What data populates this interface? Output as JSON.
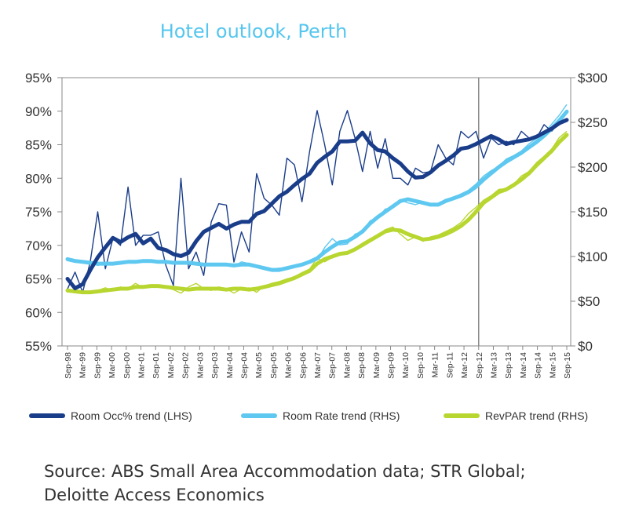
{
  "chart_data": {
    "type": "line",
    "title": "Hotel outlook, Perth",
    "x_labels": [
      "Sep-98",
      "Mar-99",
      "Sep-99",
      "Mar-00",
      "Sep-00",
      "Mar-01",
      "Sep-01",
      "Mar-02",
      "Sep-02",
      "Mar-03",
      "Sep-03",
      "Mar-04",
      "Sep-04",
      "Mar-05",
      "Sep-05",
      "Mar-06",
      "Sep-06",
      "Mar-07",
      "Sep-07",
      "Mar-08",
      "Sep-08",
      "Mar-09",
      "Sep-09",
      "Mar-10",
      "Sep-10",
      "Mar-11",
      "Sep-11",
      "Mar-12",
      "Sep-12",
      "Mar-13",
      "Sep-13",
      "Mar-14",
      "Sep-14",
      "Mar-15",
      "Sep-15"
    ],
    "y_left": {
      "ticks": [
        "55%",
        "60%",
        "65%",
        "70%",
        "75%",
        "80%",
        "85%",
        "90%",
        "95%"
      ],
      "min": 55,
      "max": 95
    },
    "y_right": {
      "ticks": [
        "$0",
        "$50",
        "$100",
        "$150",
        "$200",
        "$250",
        "$300"
      ],
      "min": 0,
      "max": 300
    },
    "forecast_divider_at": "Sep-12",
    "gridlines": false,
    "legend_position": "bottom",
    "series": [
      {
        "name": "Room Occ% trend (LHS)",
        "axis": "left",
        "color": "#1a3d8a",
        "trend": [
          65.0,
          63.6,
          64.2,
          66.3,
          68.2,
          69.7,
          71.1,
          70.5,
          71.2,
          71.7,
          70.3,
          71.0,
          69.6,
          69.3,
          68.7,
          68.4,
          68.9,
          70.6,
          72.0,
          72.6,
          73.2,
          72.5,
          73.1,
          73.5,
          73.5,
          74.7,
          75.1,
          76.2,
          77.3,
          78.0,
          79.0,
          79.9,
          80.7,
          82.3,
          83.2,
          84.0,
          85.5,
          85.5,
          85.6,
          86.8,
          85.2,
          84.2,
          84.0,
          83.0,
          82.2,
          81.0,
          80.1,
          80.2,
          80.9,
          81.9,
          82.6,
          83.4,
          84.4,
          84.6,
          85.1,
          85.7,
          86.3,
          85.8,
          85.1,
          85.4,
          85.6,
          85.8,
          86.2,
          86.8,
          87.4,
          88.2,
          88.7
        ],
        "raw": [
          63.5,
          66.0,
          63.0,
          67.5,
          75.0,
          66.5,
          71.0,
          70.0,
          78.7,
          70.0,
          71.5,
          71.5,
          72.0,
          67.0,
          64.0,
          80.0,
          66.5,
          69.0,
          65.5,
          73.5,
          76.2,
          76.0,
          67.5,
          72.0,
          69.0,
          80.7,
          77.0,
          76.0,
          74.5,
          83.0,
          82.0,
          76.5,
          84.0,
          90.1,
          85.0,
          79.0,
          87.0,
          90.1,
          86.0,
          81.0,
          87.0,
          81.5,
          85.9,
          80.0,
          80.0,
          79.0,
          81.5,
          80.8,
          81.0,
          85.0,
          83.0,
          82.0,
          87.0,
          86.0,
          87.0,
          83.0,
          86.0,
          85.0,
          85.5,
          85.0,
          87.0,
          86.0,
          86.0,
          88.0,
          87.0,
          88.3,
          88.5
        ]
      },
      {
        "name": "Room Rate trend (RHS)",
        "axis": "right",
        "color": "#5ec8f0",
        "trend": [
          97,
          95,
          94,
          93,
          92,
          92,
          92,
          93,
          94,
          94,
          95,
          95,
          94,
          94,
          93,
          93,
          93,
          92,
          91,
          91,
          91,
          91,
          90,
          91,
          91,
          89,
          87,
          85,
          85,
          87,
          89,
          91,
          94,
          98,
          105,
          111,
          116,
          117,
          122,
          128,
          137,
          144,
          150,
          156,
          162,
          164,
          162,
          160,
          158,
          158,
          162,
          165,
          168,
          172,
          178,
          186,
          193,
          200,
          206,
          211,
          216,
          222,
          228,
          235,
          243,
          252,
          262
        ],
        "raw": [
          97,
          96,
          93,
          93,
          90,
          92,
          91,
          94,
          95,
          93,
          96,
          94,
          93,
          95,
          92,
          93,
          91,
          92,
          90,
          91,
          92,
          90,
          89,
          94,
          92,
          88,
          86,
          86,
          87,
          86,
          89,
          92,
          93,
          96,
          110,
          120,
          113,
          114,
          125,
          128,
          140,
          143,
          153,
          155,
          163,
          160,
          158,
          161,
          158,
          159,
          164,
          166,
          170,
          174,
          181,
          190,
          196,
          201,
          209,
          213,
          218,
          226,
          232,
          238,
          248,
          258,
          270
        ]
      },
      {
        "name": "RevPAR trend (RHS)",
        "axis": "right",
        "color": "#b8d630",
        "trend": [
          62,
          61,
          60,
          60,
          61,
          62,
          63,
          64,
          64,
          66,
          66,
          67,
          67,
          66,
          65,
          64,
          63,
          64,
          64,
          64,
          64,
          63,
          64,
          64,
          63,
          64,
          66,
          68,
          70,
          73,
          76,
          80,
          84,
          92,
          97,
          100,
          103,
          104,
          108,
          113,
          118,
          123,
          128,
          130,
          129,
          125,
          122,
          119,
          120,
          122,
          125,
          129,
          134,
          141,
          150,
          160,
          166,
          172,
          175,
          180,
          186,
          193,
          202,
          210,
          218,
          228,
          236
        ],
        "raw": [
          60,
          62,
          59,
          61,
          62,
          65,
          62,
          66,
          64,
          70,
          65,
          66,
          68,
          65,
          63,
          59,
          66,
          70,
          64,
          62,
          66,
          64,
          59,
          64,
          65,
          60,
          67,
          70,
          72,
          75,
          77,
          82,
          86,
          98,
          94,
          99,
          104,
          103,
          109,
          115,
          120,
          123,
          130,
          133,
          125,
          118,
          122,
          117,
          122,
          124,
          128,
          132,
          138,
          148,
          155,
          163,
          168,
          175,
          176,
          181,
          190,
          195,
          205,
          212,
          220,
          233,
          240
        ]
      }
    ]
  },
  "source_line_1": "Source: ABS Small Area Accommodation data; STR Global;",
  "source_line_2": "Deloitte Access Economics"
}
